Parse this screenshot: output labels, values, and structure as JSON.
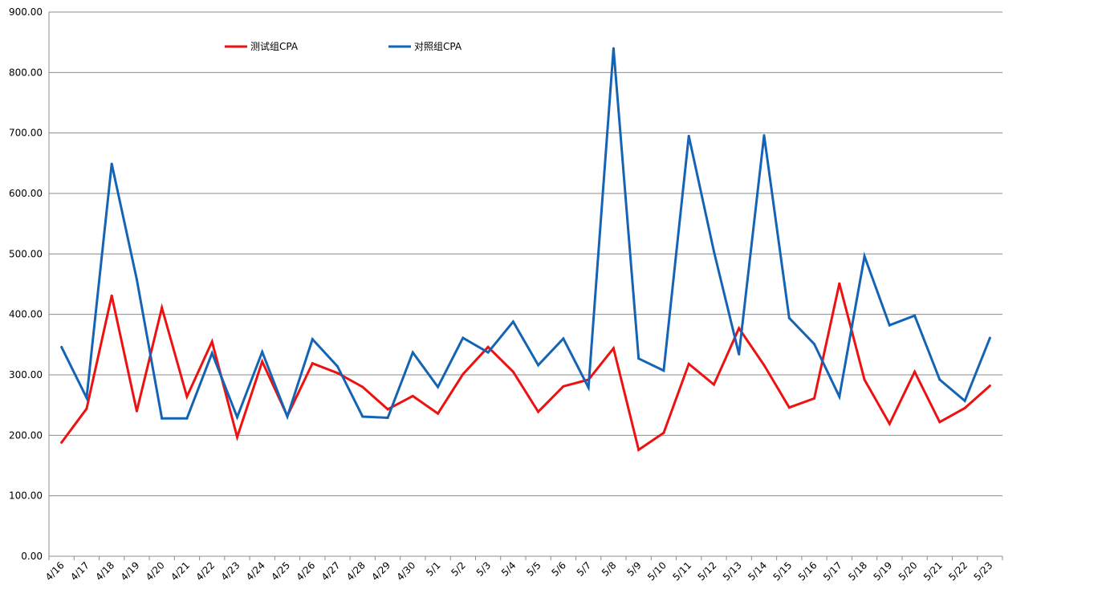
{
  "chart_data": {
    "type": "line",
    "categories": [
      "4/16",
      "4/17",
      "4/18",
      "4/19",
      "4/20",
      "4/21",
      "4/22",
      "4/23",
      "4/24",
      "4/25",
      "4/26",
      "4/27",
      "4/28",
      "4/29",
      "4/30",
      "5/1",
      "5/2",
      "5/3",
      "5/4",
      "5/5",
      "5/6",
      "5/7",
      "5/8",
      "5/9",
      "5/10",
      "5/11",
      "5/12",
      "5/13",
      "5/14",
      "5/15",
      "5/16",
      "5/17",
      "5/18",
      "5/19",
      "5/20",
      "5/21",
      "5/22",
      "5/23"
    ],
    "series": [
      {
        "name": "测试组CPA",
        "color": "#ee1111",
        "values": [
          188,
          244,
          431,
          240,
          411,
          264,
          355,
          197,
          322,
          232,
          319,
          303,
          280,
          243,
          265,
          236,
          301,
          346,
          305,
          239,
          281,
          292,
          344,
          176,
          204,
          318,
          284,
          377,
          316,
          246,
          261,
          451,
          292,
          219,
          305,
          222,
          245,
          282
        ]
      },
      {
        "name": "对照组CPA",
        "color": "#1463b4",
        "values": [
          346,
          262,
          649,
          458,
          228,
          228,
          336,
          230,
          338,
          231,
          359,
          314,
          231,
          229,
          337,
          280,
          361,
          337,
          388,
          316,
          360,
          279,
          840,
          327,
          307,
          695,
          504,
          334,
          696,
          394,
          351,
          264,
          496,
          382,
          398,
          292,
          257,
          361
        ]
      }
    ],
    "yticks": [
      "0.00",
      "100.00",
      "200.00",
      "300.00",
      "400.00",
      "500.00",
      "600.00",
      "700.00",
      "800.00",
      "900.00"
    ],
    "ylim": [
      0,
      900
    ],
    "title": "",
    "xlabel": "",
    "ylabel": "",
    "grid": true,
    "legend_position": "top-left"
  }
}
